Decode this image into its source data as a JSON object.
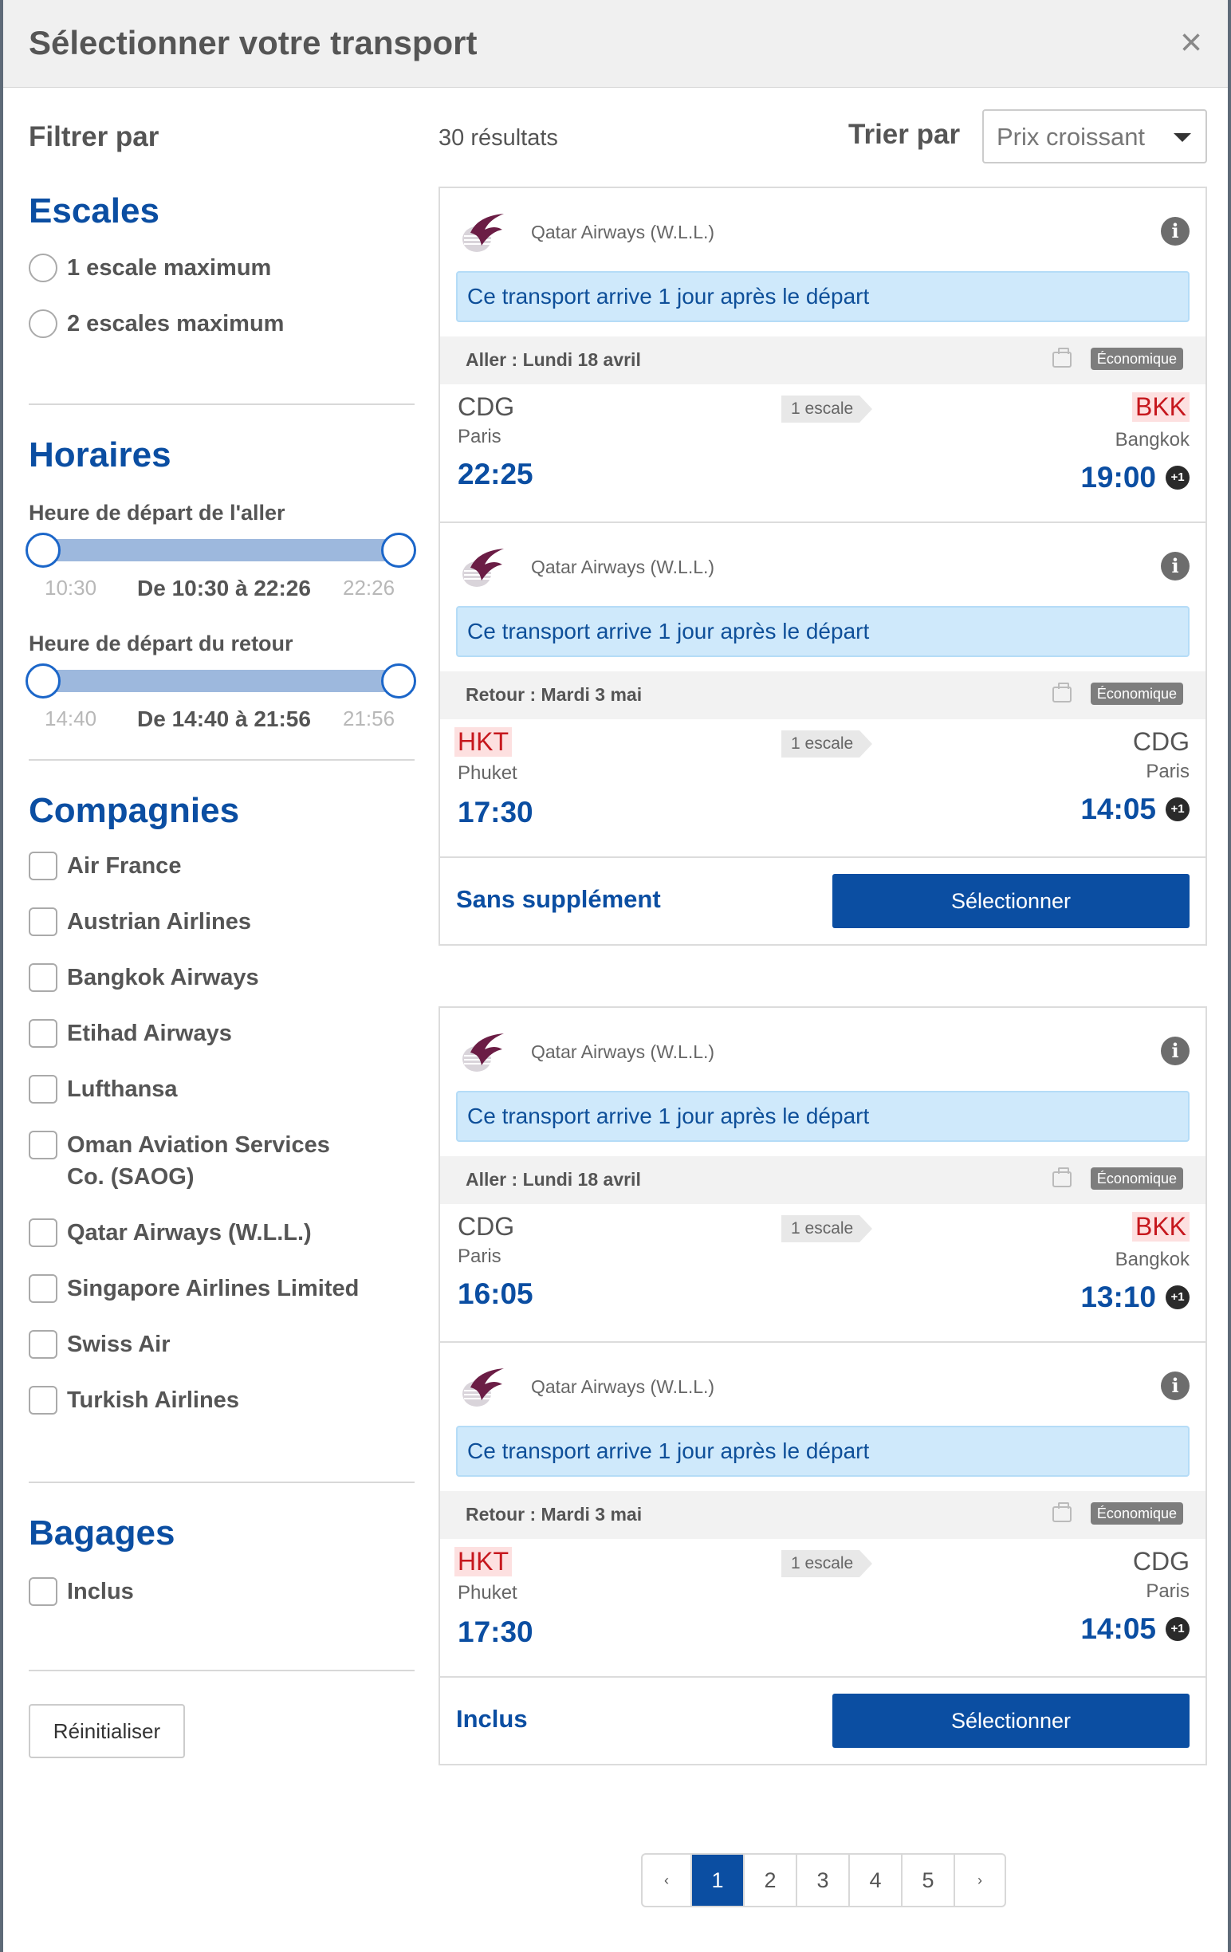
{
  "modal": {
    "title": "Sélectionner votre transport",
    "close_glyph": "×"
  },
  "filters": {
    "label": "Filtrer par",
    "stops": {
      "title": "Escales",
      "options": [
        "1 escale maximum",
        "2 escales maximum"
      ]
    },
    "schedules": {
      "title": "Horaires",
      "outbound": {
        "label": "Heure de départ de l'aller",
        "min": "10:30",
        "max": "22:26",
        "range": "De 10:30 à 22:26"
      },
      "return": {
        "label": "Heure de départ du retour",
        "min": "14:40",
        "max": "21:56",
        "range": "De 14:40 à 21:56"
      }
    },
    "airlines": {
      "title": "Compagnies",
      "options": [
        "Air France",
        "Austrian Airlines",
        "Bangkok Airways",
        "Etihad Airways",
        "Lufthansa",
        "Oman Aviation Services",
        "Co. (SAOG)",
        "Qatar Airways (W.L.L.)",
        "Singapore Airlines Limited",
        "Swiss Air",
        "Turkish Airlines"
      ]
    },
    "baggage": {
      "title": "Bagages",
      "options": [
        "Inclus"
      ]
    },
    "reset_label": "Réinitialiser"
  },
  "results": {
    "count": "30 résultats",
    "sort_label": "Trier par",
    "sort_value": "Prix croissant"
  },
  "offers": [
    {
      "price_label": "Sans supplément",
      "select_label": "Sélectionner",
      "legs": [
        {
          "airline": "Qatar Airways (W.L.L.)",
          "notice": "Ce transport arrive 1 jour après le départ",
          "date": "Aller : Lundi 18 avril",
          "class": "Économique",
          "stops": "1 escale",
          "from_code": "CDG",
          "from_city": "Paris",
          "dep_time": "22:25",
          "to_code": "BKK",
          "to_city": "Bangkok",
          "arr_time": "19:00",
          "plus": "+1"
        },
        {
          "airline": "Qatar Airways (W.L.L.)",
          "notice": "Ce transport arrive 1 jour après le départ",
          "date": "Retour : Mardi 3 mai",
          "class": "Économique",
          "stops": "1 escale",
          "from_code": "HKT",
          "from_city": "Phuket",
          "dep_time": "17:30",
          "to_code": "CDG",
          "to_city": "Paris",
          "arr_time": "14:05",
          "plus": "+1"
        }
      ]
    },
    {
      "price_label": "Inclus",
      "select_label": "Sélectionner",
      "legs": [
        {
          "airline": "Qatar Airways (W.L.L.)",
          "notice": "Ce transport arrive 1 jour après le départ",
          "date": "Aller : Lundi 18 avril",
          "class": "Économique",
          "stops": "1 escale",
          "from_code": "CDG",
          "from_city": "Paris",
          "dep_time": "16:05",
          "to_code": "BKK",
          "to_city": "Bangkok",
          "arr_time": "13:10",
          "plus": "+1"
        },
        {
          "airline": "Qatar Airways (W.L.L.)",
          "notice": "Ce transport arrive 1 jour après le départ",
          "date": "Retour : Mardi 3 mai",
          "class": "Économique",
          "stops": "1 escale",
          "from_code": "HKT",
          "from_city": "Phuket",
          "dep_time": "17:30",
          "to_code": "CDG",
          "to_city": "Paris",
          "arr_time": "14:05",
          "plus": "+1"
        }
      ]
    }
  ],
  "pagination": {
    "prev": "‹",
    "pages": [
      "1",
      "2",
      "3",
      "4",
      "5"
    ],
    "next": "›",
    "current": "1"
  },
  "colors": {
    "primary": "#0b4ea2",
    "notice_bg": "#cfe9fb",
    "airport_highlight": "#c6171d"
  }
}
